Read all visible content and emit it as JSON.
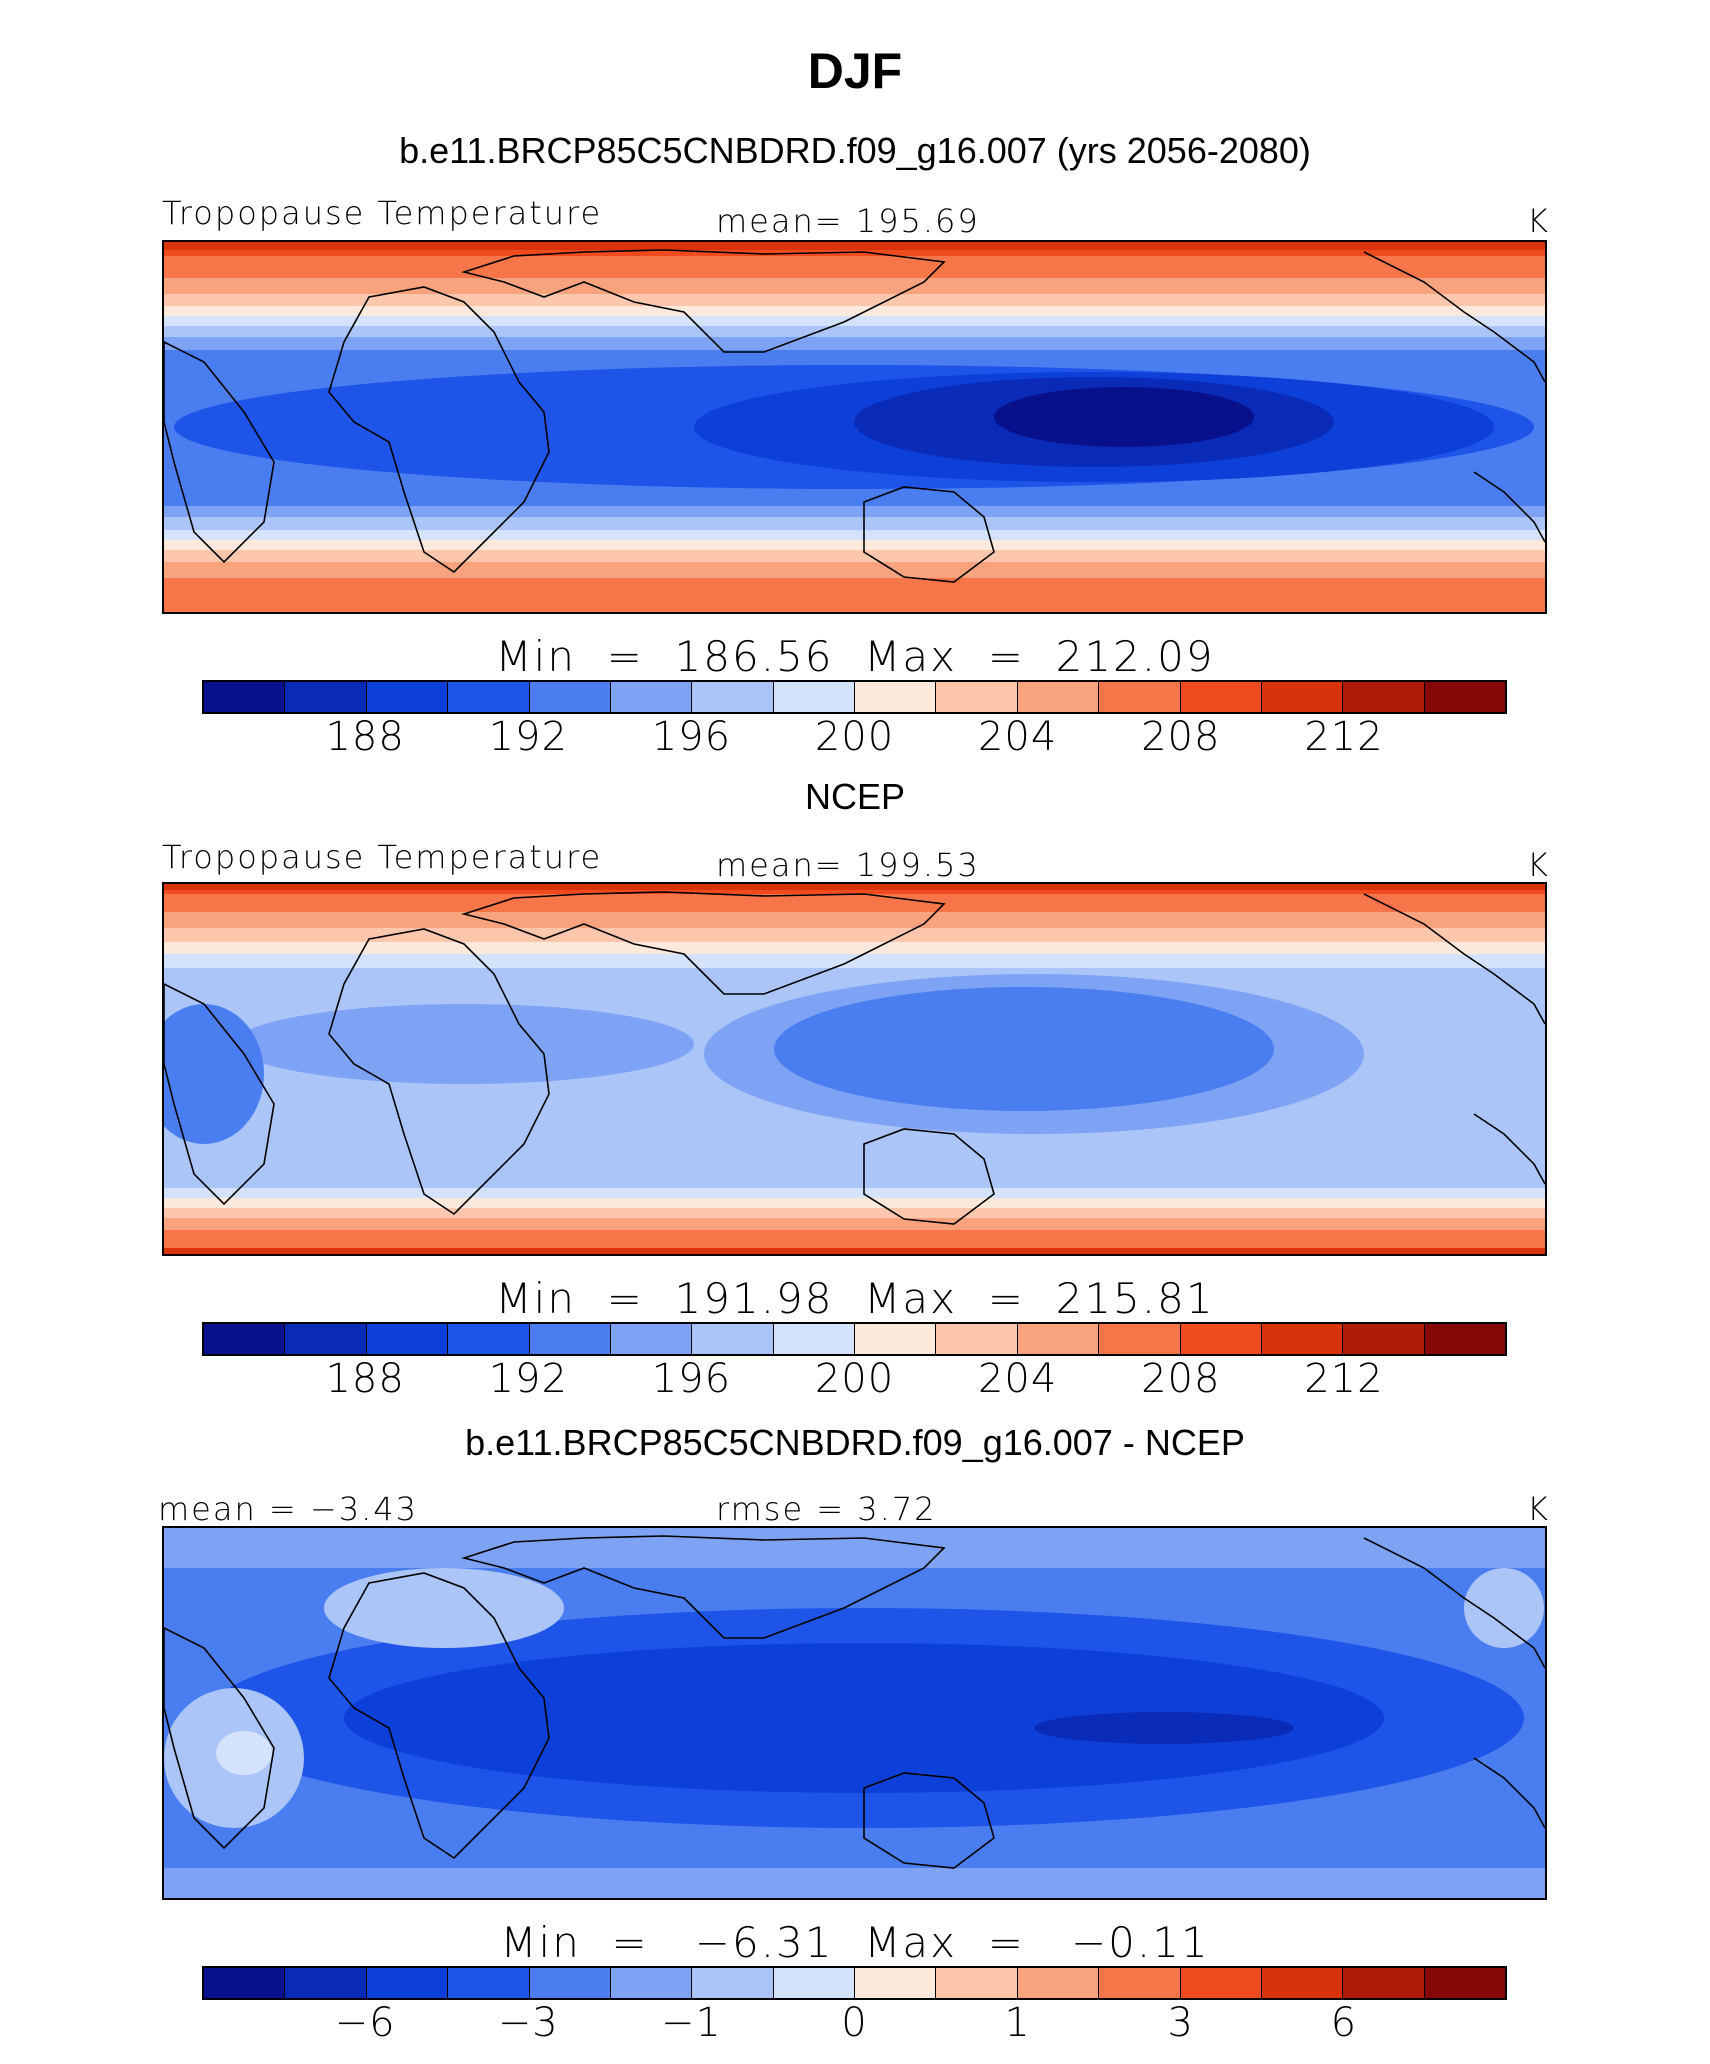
{
  "title": "DJF",
  "palette": [
    "#08108c",
    "#0a2bb8",
    "#0d40d8",
    "#1e55e8",
    "#4a7ef0",
    "#7ea3f4",
    "#abc5f8",
    "#d4e3fb",
    "#fde9dc",
    "#fcc7ac",
    "#f9a37e",
    "#f6764a",
    "#f04b1e",
    "#d9330c",
    "#b01a08",
    "#840806"
  ],
  "panels": [
    {
      "title": "b.e11.BRCP85C5CNBDRD.f09_g16.007 (yrs 2056-2080)",
      "left_label": "Tropopause Temperature",
      "center_label": "mean=  195.69",
      "right_label": "K",
      "minmax": "Min  =  186.56  Max  =  212.09",
      "ticks": [
        "188",
        "192",
        "196",
        "200",
        "204",
        "208",
        "212"
      ]
    },
    {
      "title": "NCEP",
      "left_label": "Tropopause Temperature",
      "center_label": "mean=  199.53",
      "right_label": "K",
      "minmax": "Min  =  191.98  Max  =  215.81",
      "ticks": [
        "188",
        "192",
        "196",
        "200",
        "204",
        "208",
        "212"
      ]
    },
    {
      "title": "b.e11.BRCP85C5CNBDRD.f09_g16.007 - NCEP",
      "left_label": "mean =   −3.43",
      "center_label": "rmse =     3.72",
      "right_label": "K",
      "minmax": "Min  =   −6.31  Max  =   −0.11",
      "ticks": [
        "−6",
        "−3",
        "−1",
        "0",
        "1",
        "3",
        "6"
      ]
    }
  ]
}
